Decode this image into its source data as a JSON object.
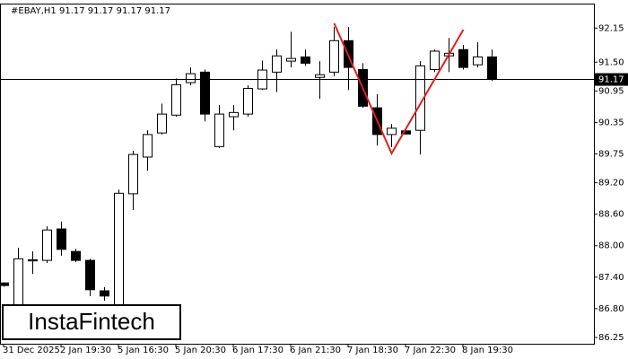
{
  "chart_data": {
    "type": "candlestick",
    "header": "#EBAY,H1  91.17 91.17 91.17 91.17",
    "watermark": "InstaFintech",
    "categories": [
      "31 Dec 2025",
      null,
      null,
      null,
      "2 Jan 19:30",
      null,
      null,
      null,
      "5 Jan 16:30",
      null,
      null,
      null,
      "5 Jan 20:30",
      null,
      null,
      null,
      "6 Jan 17:30",
      null,
      null,
      null,
      "6 Jan 21:30",
      null,
      null,
      null,
      "7 Jan 18:30",
      null,
      null,
      null,
      "7 Jan 22:30",
      null,
      null,
      null,
      "8 Jan 19:30",
      null,
      null
    ],
    "open": [
      87.29,
      86.78,
      87.71,
      87.72,
      88.32,
      87.89,
      87.72,
      87.14,
      86.85,
      88.99,
      89.69,
      90.15,
      90.49,
      91.11,
      91.31,
      89.89,
      90.46,
      90.51,
      90.99,
      91.31,
      91.52,
      91.6,
      91.21,
      91.31,
      91.91,
      91.36,
      90.63,
      90.12,
      90.19,
      90.2,
      91.36,
      91.62,
      91.74,
      91.45,
      91.6
    ],
    "high": [
      87.3,
      87.96,
      87.89,
      88.37,
      88.46,
      87.94,
      87.75,
      87.21,
      89.07,
      89.81,
      90.2,
      90.71,
      91.19,
      91.4,
      91.36,
      90.68,
      90.68,
      91.06,
      91.53,
      91.74,
      92.08,
      91.74,
      91.52,
      92.17,
      92.17,
      91.48,
      90.89,
      90.32,
      90.24,
      91.52,
      91.74,
      91.96,
      91.83,
      91.88,
      91.74
    ],
    "low": [
      87.22,
      86.7,
      87.46,
      87.67,
      87.81,
      87.69,
      87.04,
      86.95,
      86.78,
      88.68,
      89.43,
      90.12,
      90.46,
      91.06,
      90.37,
      89.86,
      90.2,
      90.46,
      90.97,
      90.93,
      91.4,
      91.43,
      90.8,
      91.23,
      90.97,
      90.63,
      89.91,
      89.88,
      90.12,
      89.74,
      91.31,
      91.31,
      91.36,
      91.4,
      91.14
    ],
    "close": [
      87.24,
      87.75,
      87.73,
      88.3,
      87.93,
      87.72,
      87.16,
      87.04,
      89.0,
      89.74,
      90.12,
      90.51,
      91.07,
      91.28,
      90.51,
      90.51,
      90.54,
      91.0,
      91.35,
      91.62,
      91.57,
      91.48,
      91.26,
      91.91,
      91.4,
      90.66,
      90.12,
      90.24,
      90.13,
      91.43,
      91.71,
      91.67,
      91.4,
      91.6,
      91.17
    ],
    "up_color": "#ffffff",
    "down_color": "#000000",
    "outline_color": "#000000",
    "last_price": 91.17,
    "pattern_color": "#e0201b",
    "pattern_points": [
      {
        "x": 23,
        "y": 92.24
      },
      {
        "x": 27,
        "y": 89.76
      },
      {
        "x": 32,
        "y": 92.12
      }
    ],
    "ylim": [
      86.13,
      92.6
    ],
    "yticks": [
      {
        "value": 86.25,
        "label": "86.25"
      },
      {
        "value": 86.8,
        "label": "86.80"
      },
      {
        "value": 87.4,
        "label": "87.40"
      },
      {
        "value": 88.0,
        "label": "88.00"
      },
      {
        "value": 88.6,
        "label": "88.60"
      },
      {
        "value": 89.2,
        "label": "89.20"
      },
      89.75,
      90.35,
      90.95,
      {
        "value": 91.5,
        "label": "91.50"
      },
      92.15
    ]
  }
}
